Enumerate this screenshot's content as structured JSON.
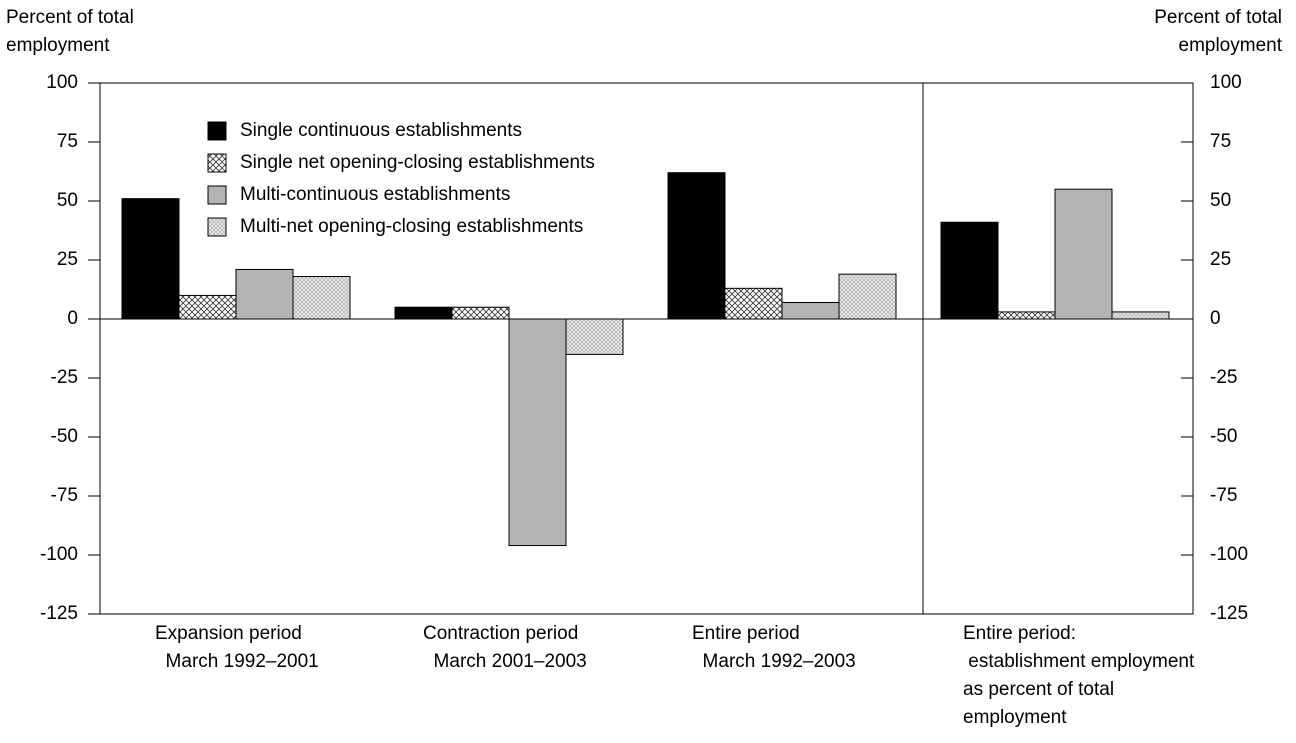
{
  "chart_data": {
    "type": "bar",
    "y_label": "Percent of total\nemployment",
    "y2_label": "Percent of total\nemployment",
    "categories": [
      "Expansion period\n  March 1992–2001",
      "Contraction period\n  March 2001–2003",
      "Entire period\n  March 1992–2003",
      "Entire period:\n establishment employment\nas percent of total\nemployment"
    ],
    "series": [
      {
        "name": "Single continuous establishments",
        "color": "#000000",
        "values": [
          51,
          5,
          62,
          41
        ]
      },
      {
        "name": "Single net opening-closing establishments",
        "color": "#ffffff",
        "pattern": "crosshatch",
        "values": [
          10,
          5,
          13,
          3
        ]
      },
      {
        "name": "Multi-continuous establishments",
        "color": "#b3b3b3",
        "values": [
          21,
          -96,
          7,
          55
        ]
      },
      {
        "name": "Multi-net opening-closing establishments",
        "color": "#d9d9d9",
        "pattern": "dots",
        "values": [
          18,
          -15,
          19,
          3
        ]
      }
    ],
    "ylim": [
      -125,
      100
    ],
    "yticks": [
      -125,
      -100,
      -75,
      -50,
      -25,
      0,
      25,
      50,
      75,
      100
    ],
    "y2lim": [
      -125,
      100
    ],
    "y2ticks": [
      -125,
      -100,
      -75,
      -50,
      -25,
      0,
      25,
      50,
      75,
      100
    ],
    "legend": "upper left",
    "separator_before_last": true
  }
}
